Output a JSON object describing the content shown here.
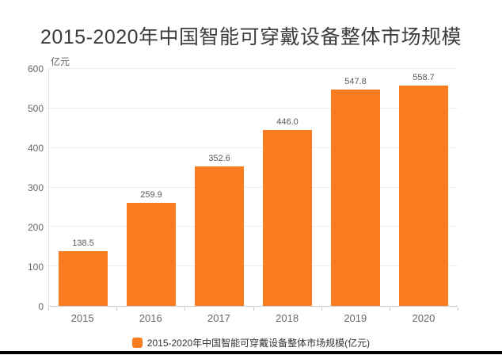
{
  "chart_data": {
    "type": "bar",
    "title": "2015-2020年中国智能可穿戴设备整体市场规模",
    "ylabel": "亿元",
    "xlabel": "",
    "categories": [
      "2015",
      "2016",
      "2017",
      "2018",
      "2019",
      "2020"
    ],
    "values": [
      138.5,
      259.9,
      352.6,
      446.0,
      547.8,
      558.7
    ],
    "value_labels": [
      "138.5",
      "259.9",
      "352.6",
      "446.0",
      "547.8",
      "558.7"
    ],
    "ylim": [
      0,
      600
    ],
    "yticks": [
      0,
      100,
      200,
      300,
      400,
      500,
      600
    ],
    "grid": true,
    "legend": "2015-2020年中国智能可穿戴设备整体市场规模(亿元)",
    "legend_position": "bottom",
    "bar_color": "#f97c21",
    "grid_color": "#eeeeee",
    "axis_color": "#cccccc",
    "title_color": "#3d3d3d",
    "tick_label_color": "#666666",
    "value_label_color": "#595959"
  }
}
